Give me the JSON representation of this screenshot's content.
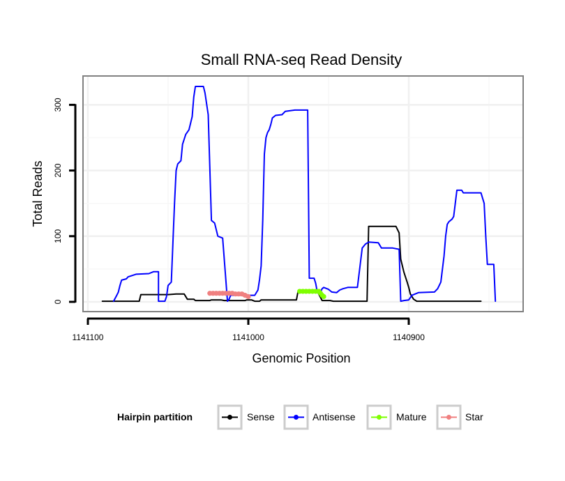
{
  "chart_data": {
    "type": "line",
    "title": "Small RNA-seq Read Density",
    "xlabel": "Genomic Position",
    "ylabel": "Total Reads",
    "x_reversed": true,
    "xlim": [
      1141110,
      1140840
    ],
    "ylim": [
      -15,
      345
    ],
    "x_ticks": [
      1141100,
      1141000,
      1140900
    ],
    "x_tick_labels": [
      "1141100",
      "1141000",
      "1140900"
    ],
    "y_ticks": [
      0,
      100,
      200,
      300
    ],
    "y_tick_labels": [
      "0",
      "100",
      "200",
      "300"
    ],
    "grid": true,
    "legend": {
      "title": "Hairpin partition",
      "position": "bottom",
      "entries": [
        "Sense",
        "Antisense",
        "Mature",
        "Star"
      ]
    },
    "series": [
      {
        "name": "Sense",
        "color": "#000000",
        "points": [
          [
            1141091,
            1
          ],
          [
            1141068,
            1
          ],
          [
            1141067,
            11
          ],
          [
            1141050,
            11
          ],
          [
            1141045,
            12
          ],
          [
            1141040,
            12
          ],
          [
            1141038,
            4
          ],
          [
            1141034,
            4
          ],
          [
            1141033,
            2
          ],
          [
            1141024,
            2
          ],
          [
            1141023,
            3
          ],
          [
            1141017,
            3
          ],
          [
            1141015,
            2
          ],
          [
            1141002,
            2
          ],
          [
            1141001,
            3
          ],
          [
            1140998,
            3
          ],
          [
            1140996,
            1
          ],
          [
            1140993,
            1
          ],
          [
            1140992,
            3
          ],
          [
            1140970,
            3
          ],
          [
            1140969,
            16
          ],
          [
            1140957,
            16
          ],
          [
            1140954,
            2
          ],
          [
            1140949,
            2
          ],
          [
            1140947,
            1
          ],
          [
            1140935,
            1
          ],
          [
            1140931,
            1
          ],
          [
            1140926,
            1
          ],
          [
            1140925,
            115
          ],
          [
            1140908,
            115
          ],
          [
            1140906,
            105
          ],
          [
            1140905,
            65
          ],
          [
            1140903,
            45
          ],
          [
            1140901,
            30
          ],
          [
            1140900,
            22
          ],
          [
            1140899,
            12
          ],
          [
            1140897,
            4
          ],
          [
            1140895,
            1
          ],
          [
            1140855,
            1
          ]
        ]
      },
      {
        "name": "Antisense",
        "color": "#0000ff",
        "points": [
          [
            1141084,
            1
          ],
          [
            1141082,
            10
          ],
          [
            1141081,
            15
          ],
          [
            1141080,
            25
          ],
          [
            1141079,
            33
          ],
          [
            1141076,
            35
          ],
          [
            1141075,
            38
          ],
          [
            1141070,
            42
          ],
          [
            1141062,
            43
          ],
          [
            1141059,
            46
          ],
          [
            1141056,
            46
          ],
          [
            1141056,
            1
          ],
          [
            1141052,
            1
          ],
          [
            1141051,
            8
          ],
          [
            1141050,
            25
          ],
          [
            1141048,
            30
          ],
          [
            1141047,
            90
          ],
          [
            1141046,
            150
          ],
          [
            1141045,
            200
          ],
          [
            1141044,
            210
          ],
          [
            1141042,
            215
          ],
          [
            1141041,
            240
          ],
          [
            1141039,
            255
          ],
          [
            1141037,
            262
          ],
          [
            1141035,
            282
          ],
          [
            1141034,
            312
          ],
          [
            1141033,
            328
          ],
          [
            1141028,
            328
          ],
          [
            1141027,
            318
          ],
          [
            1141025,
            285
          ],
          [
            1141023,
            124
          ],
          [
            1141021,
            120
          ],
          [
            1141019,
            100
          ],
          [
            1141016,
            97
          ],
          [
            1141013,
            1
          ],
          [
            1141012,
            4
          ],
          [
            1141011,
            10
          ],
          [
            1140996,
            10
          ],
          [
            1140994,
            18
          ],
          [
            1140993,
            34
          ],
          [
            1140992,
            55
          ],
          [
            1140991,
            125
          ],
          [
            1140990,
            225
          ],
          [
            1140989,
            250
          ],
          [
            1140988,
            258
          ],
          [
            1140987,
            262
          ],
          [
            1140986,
            270
          ],
          [
            1140985,
            280
          ],
          [
            1140983,
            284
          ],
          [
            1140979,
            285
          ],
          [
            1140977,
            290
          ],
          [
            1140971,
            292
          ],
          [
            1140963,
            292
          ],
          [
            1140962,
            36
          ],
          [
            1140959,
            36
          ],
          [
            1140958,
            28
          ],
          [
            1140957,
            15
          ],
          [
            1140955,
            15
          ],
          [
            1140954,
            20
          ],
          [
            1140953,
            22
          ],
          [
            1140950,
            19
          ],
          [
            1140948,
            15
          ],
          [
            1140945,
            14
          ],
          [
            1140943,
            18
          ],
          [
            1140941,
            20
          ],
          [
            1140938,
            22
          ],
          [
            1140934,
            22
          ],
          [
            1140932,
            22
          ],
          [
            1140929,
            82
          ],
          [
            1140927,
            88
          ],
          [
            1140925,
            91
          ],
          [
            1140919,
            90
          ],
          [
            1140917,
            82
          ],
          [
            1140910,
            82
          ],
          [
            1140906,
            80
          ],
          [
            1140905,
            1
          ],
          [
            1140903,
            2
          ],
          [
            1140900,
            3
          ],
          [
            1140898,
            10
          ],
          [
            1140894,
            14
          ],
          [
            1140884,
            15
          ],
          [
            1140882,
            20
          ],
          [
            1140880,
            30
          ],
          [
            1140878,
            70
          ],
          [
            1140877,
            100
          ],
          [
            1140876,
            118
          ],
          [
            1140875,
            122
          ],
          [
            1140873,
            126
          ],
          [
            1140872,
            130
          ],
          [
            1140871,
            150
          ],
          [
            1140870,
            170
          ],
          [
            1140867,
            170
          ],
          [
            1140866,
            166
          ],
          [
            1140855,
            166
          ],
          [
            1140853,
            150
          ],
          [
            1140852,
            100
          ],
          [
            1140851,
            57
          ],
          [
            1140847,
            57
          ],
          [
            1140846,
            1
          ]
        ]
      },
      {
        "name": "Mature",
        "color": "#7fff00",
        "points": [
          [
            1140968,
            16
          ],
          [
            1140966,
            16
          ],
          [
            1140964,
            16
          ],
          [
            1140962,
            16
          ],
          [
            1140960,
            16
          ],
          [
            1140958,
            16
          ],
          [
            1140956,
            16
          ],
          [
            1140955,
            13
          ],
          [
            1140954,
            10
          ],
          [
            1140953,
            8
          ]
        ]
      },
      {
        "name": "Star",
        "color": "#f08080",
        "points": [
          [
            1141024,
            13
          ],
          [
            1141022,
            13
          ],
          [
            1141020,
            13
          ],
          [
            1141018,
            13
          ],
          [
            1141016,
            13
          ],
          [
            1141014,
            13
          ],
          [
            1141012,
            13
          ],
          [
            1141010,
            13
          ],
          [
            1141008,
            12
          ],
          [
            1141006,
            12
          ],
          [
            1141004,
            12
          ],
          [
            1141002,
            10
          ],
          [
            1141000,
            8
          ]
        ]
      }
    ]
  }
}
